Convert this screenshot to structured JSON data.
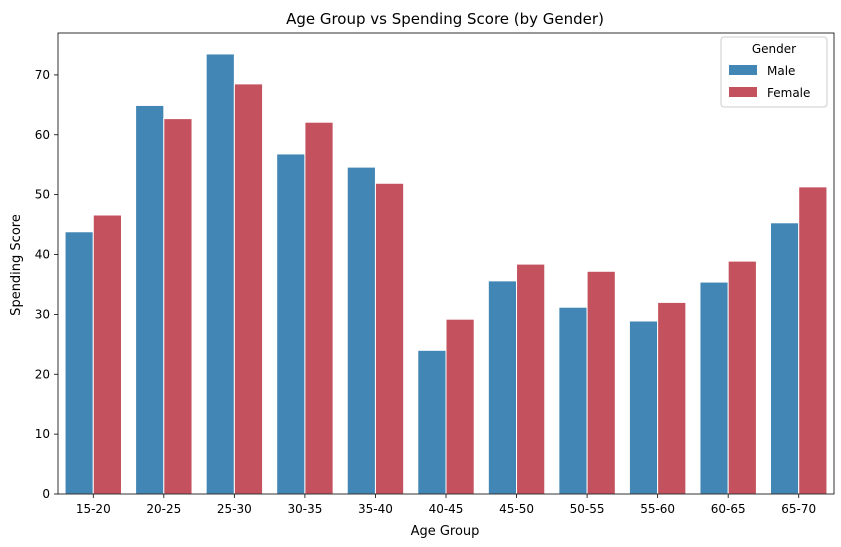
{
  "chart_data": {
    "type": "bar",
    "title": "Age Group vs Spending Score (by Gender)",
    "xlabel": "Age Group",
    "ylabel": "Spending Score",
    "ylim": [
      0,
      77
    ],
    "yticks": [
      0,
      10,
      20,
      30,
      40,
      50,
      60,
      70
    ],
    "categories": [
      "15-20",
      "20-25",
      "25-30",
      "30-35",
      "35-40",
      "40-45",
      "45-50",
      "50-55",
      "55-60",
      "60-65",
      "65-70"
    ],
    "series": [
      {
        "name": "Male",
        "color": "#4186b4",
        "values": [
          43.8,
          64.9,
          73.5,
          56.8,
          54.6,
          24.0,
          35.6,
          31.2,
          28.9,
          35.4,
          45.3
        ]
      },
      {
        "name": "Female",
        "color": "#c4515e",
        "values": [
          46.6,
          62.7,
          68.5,
          62.1,
          51.9,
          29.2,
          38.4,
          37.2,
          32.0,
          38.9,
          51.3
        ]
      }
    ],
    "legend": {
      "title": "Gender",
      "placement": "top-right"
    },
    "grid": false
  }
}
